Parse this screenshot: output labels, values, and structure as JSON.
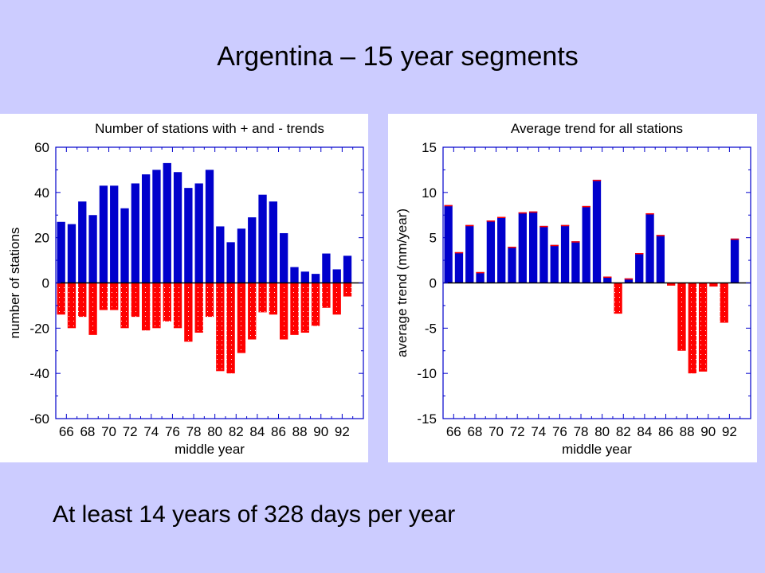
{
  "slide": {
    "title": "Argentina – 15 year segments",
    "footer": "At least 14 years of 328 days per year"
  },
  "colors": {
    "background": "#ccccff",
    "positive": "#0000cc",
    "negative": "#ff0000",
    "axis": "#0000cc"
  },
  "chart_data": [
    {
      "type": "bar",
      "title": "Number of stations with + and - trends",
      "xlabel": "middle year",
      "ylabel": "number of stations",
      "ylim": [
        -60,
        60
      ],
      "yticks": [
        60,
        40,
        20,
        0,
        -20,
        -40,
        -60
      ],
      "xlim": [
        65,
        94
      ],
      "xticks": [
        66,
        68,
        70,
        72,
        74,
        76,
        78,
        80,
        82,
        84,
        86,
        88,
        90,
        92
      ],
      "x": [
        65.5,
        66.5,
        67.5,
        68.5,
        69.5,
        70.5,
        71.5,
        72.5,
        73.5,
        74.5,
        75.5,
        76.5,
        77.5,
        78.5,
        79.5,
        80.5,
        81.5,
        82.5,
        83.5,
        84.5,
        85.5,
        86.5,
        87.5,
        88.5,
        89.5,
        90.5,
        91.5,
        92.5,
        93.5
      ],
      "series": [
        {
          "name": "+ trends",
          "values": [
            27,
            26,
            36,
            30,
            43,
            43,
            33,
            44,
            48,
            50,
            53,
            49,
            42,
            44,
            50,
            25,
            18,
            24,
            29,
            39,
            36,
            22,
            7,
            5,
            4,
            13,
            6,
            12,
            0
          ]
        },
        {
          "name": "- trends",
          "values": [
            -14,
            -20,
            -15,
            -23,
            -12,
            -12,
            -20,
            -15,
            -21,
            -20,
            -17,
            -20,
            -26,
            -22,
            -15,
            -39,
            -40,
            -31,
            -25,
            -13,
            -14,
            -25,
            -23,
            -22,
            -19,
            -11,
            -14,
            -6,
            0
          ]
        }
      ]
    },
    {
      "type": "bar",
      "title": "Average trend for all stations",
      "xlabel": "middle year",
      "ylabel": "average trend (mm/year)",
      "ylim": [
        -15,
        15
      ],
      "yticks": [
        15,
        10,
        5,
        0,
        -5,
        -10,
        -15
      ],
      "xlim": [
        65,
        94
      ],
      "xticks": [
        66,
        68,
        70,
        72,
        74,
        76,
        78,
        80,
        82,
        84,
        86,
        88,
        90,
        92
      ],
      "x": [
        65.5,
        66.5,
        67.5,
        68.5,
        69.5,
        70.5,
        71.5,
        72.5,
        73.5,
        74.5,
        75.5,
        76.5,
        77.5,
        78.5,
        79.5,
        80.5,
        81.5,
        82.5,
        83.5,
        84.5,
        85.5,
        86.5,
        87.5,
        88.5,
        89.5,
        90.5,
        91.5,
        92.5,
        93.5
      ],
      "series": [
        {
          "name": "average trend",
          "values": [
            8.6,
            3.4,
            6.4,
            1.2,
            6.9,
            7.3,
            4.0,
            7.8,
            7.9,
            6.3,
            4.2,
            6.4,
            4.6,
            8.5,
            11.4,
            0.7,
            -3.4,
            0.5,
            3.3,
            7.7,
            5.3,
            -0.3,
            -7.5,
            -10.0,
            -9.8,
            -0.4,
            -4.4,
            4.9,
            0
          ]
        }
      ]
    }
  ]
}
